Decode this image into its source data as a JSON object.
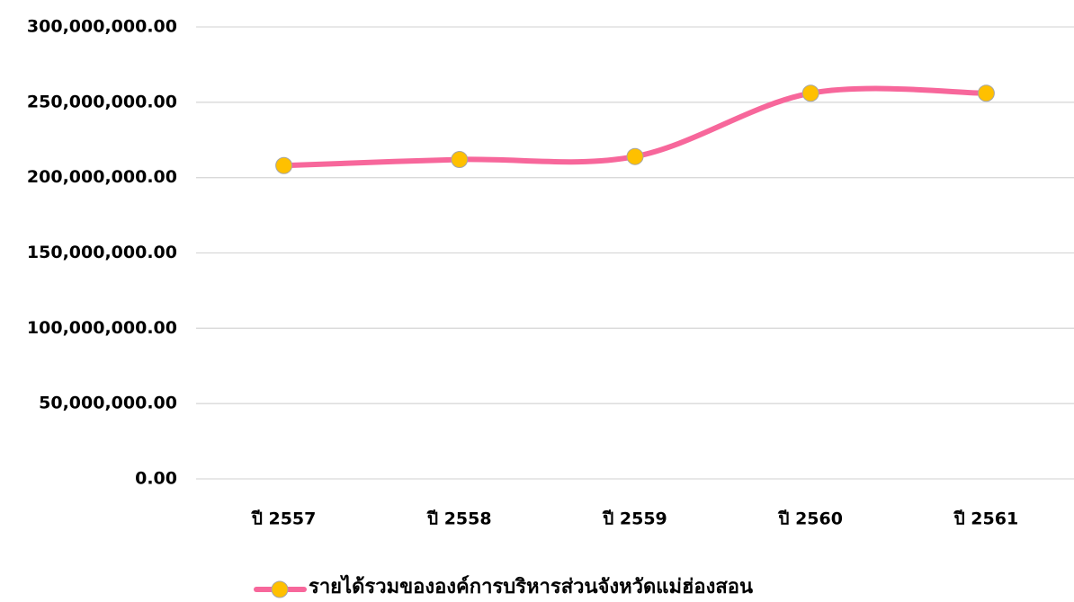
{
  "chart_data": {
    "type": "line",
    "categories": [
      "ปี 2557",
      "ปี 2558",
      "ปี 2559",
      "ปี 2560",
      "ปี 2561"
    ],
    "series": [
      {
        "name": "รายได้รวมขององค์การบริหารส่วนจังหวัดแม่ฮ่องสอน",
        "color": "#f7679b",
        "marker_color": "#ffc000",
        "values": [
          208000000,
          212000000,
          214000000,
          256000000,
          256000000
        ]
      }
    ],
    "ylim": [
      0,
      300000000
    ],
    "yticks": [
      {
        "value": 0,
        "label": "0.00"
      },
      {
        "value": 50000000,
        "label": "50,000,000.00"
      },
      {
        "value": 100000000,
        "label": "100,000,000.00"
      },
      {
        "value": 150000000,
        "label": "150,000,000.00"
      },
      {
        "value": 200000000,
        "label": "200,000,000.00"
      },
      {
        "value": 250000000,
        "label": "250,000,000.00"
      },
      {
        "value": 300000000,
        "label": "300,000,000.00"
      }
    ],
    "grid": true,
    "smooth": true,
    "legend": "bottom"
  }
}
